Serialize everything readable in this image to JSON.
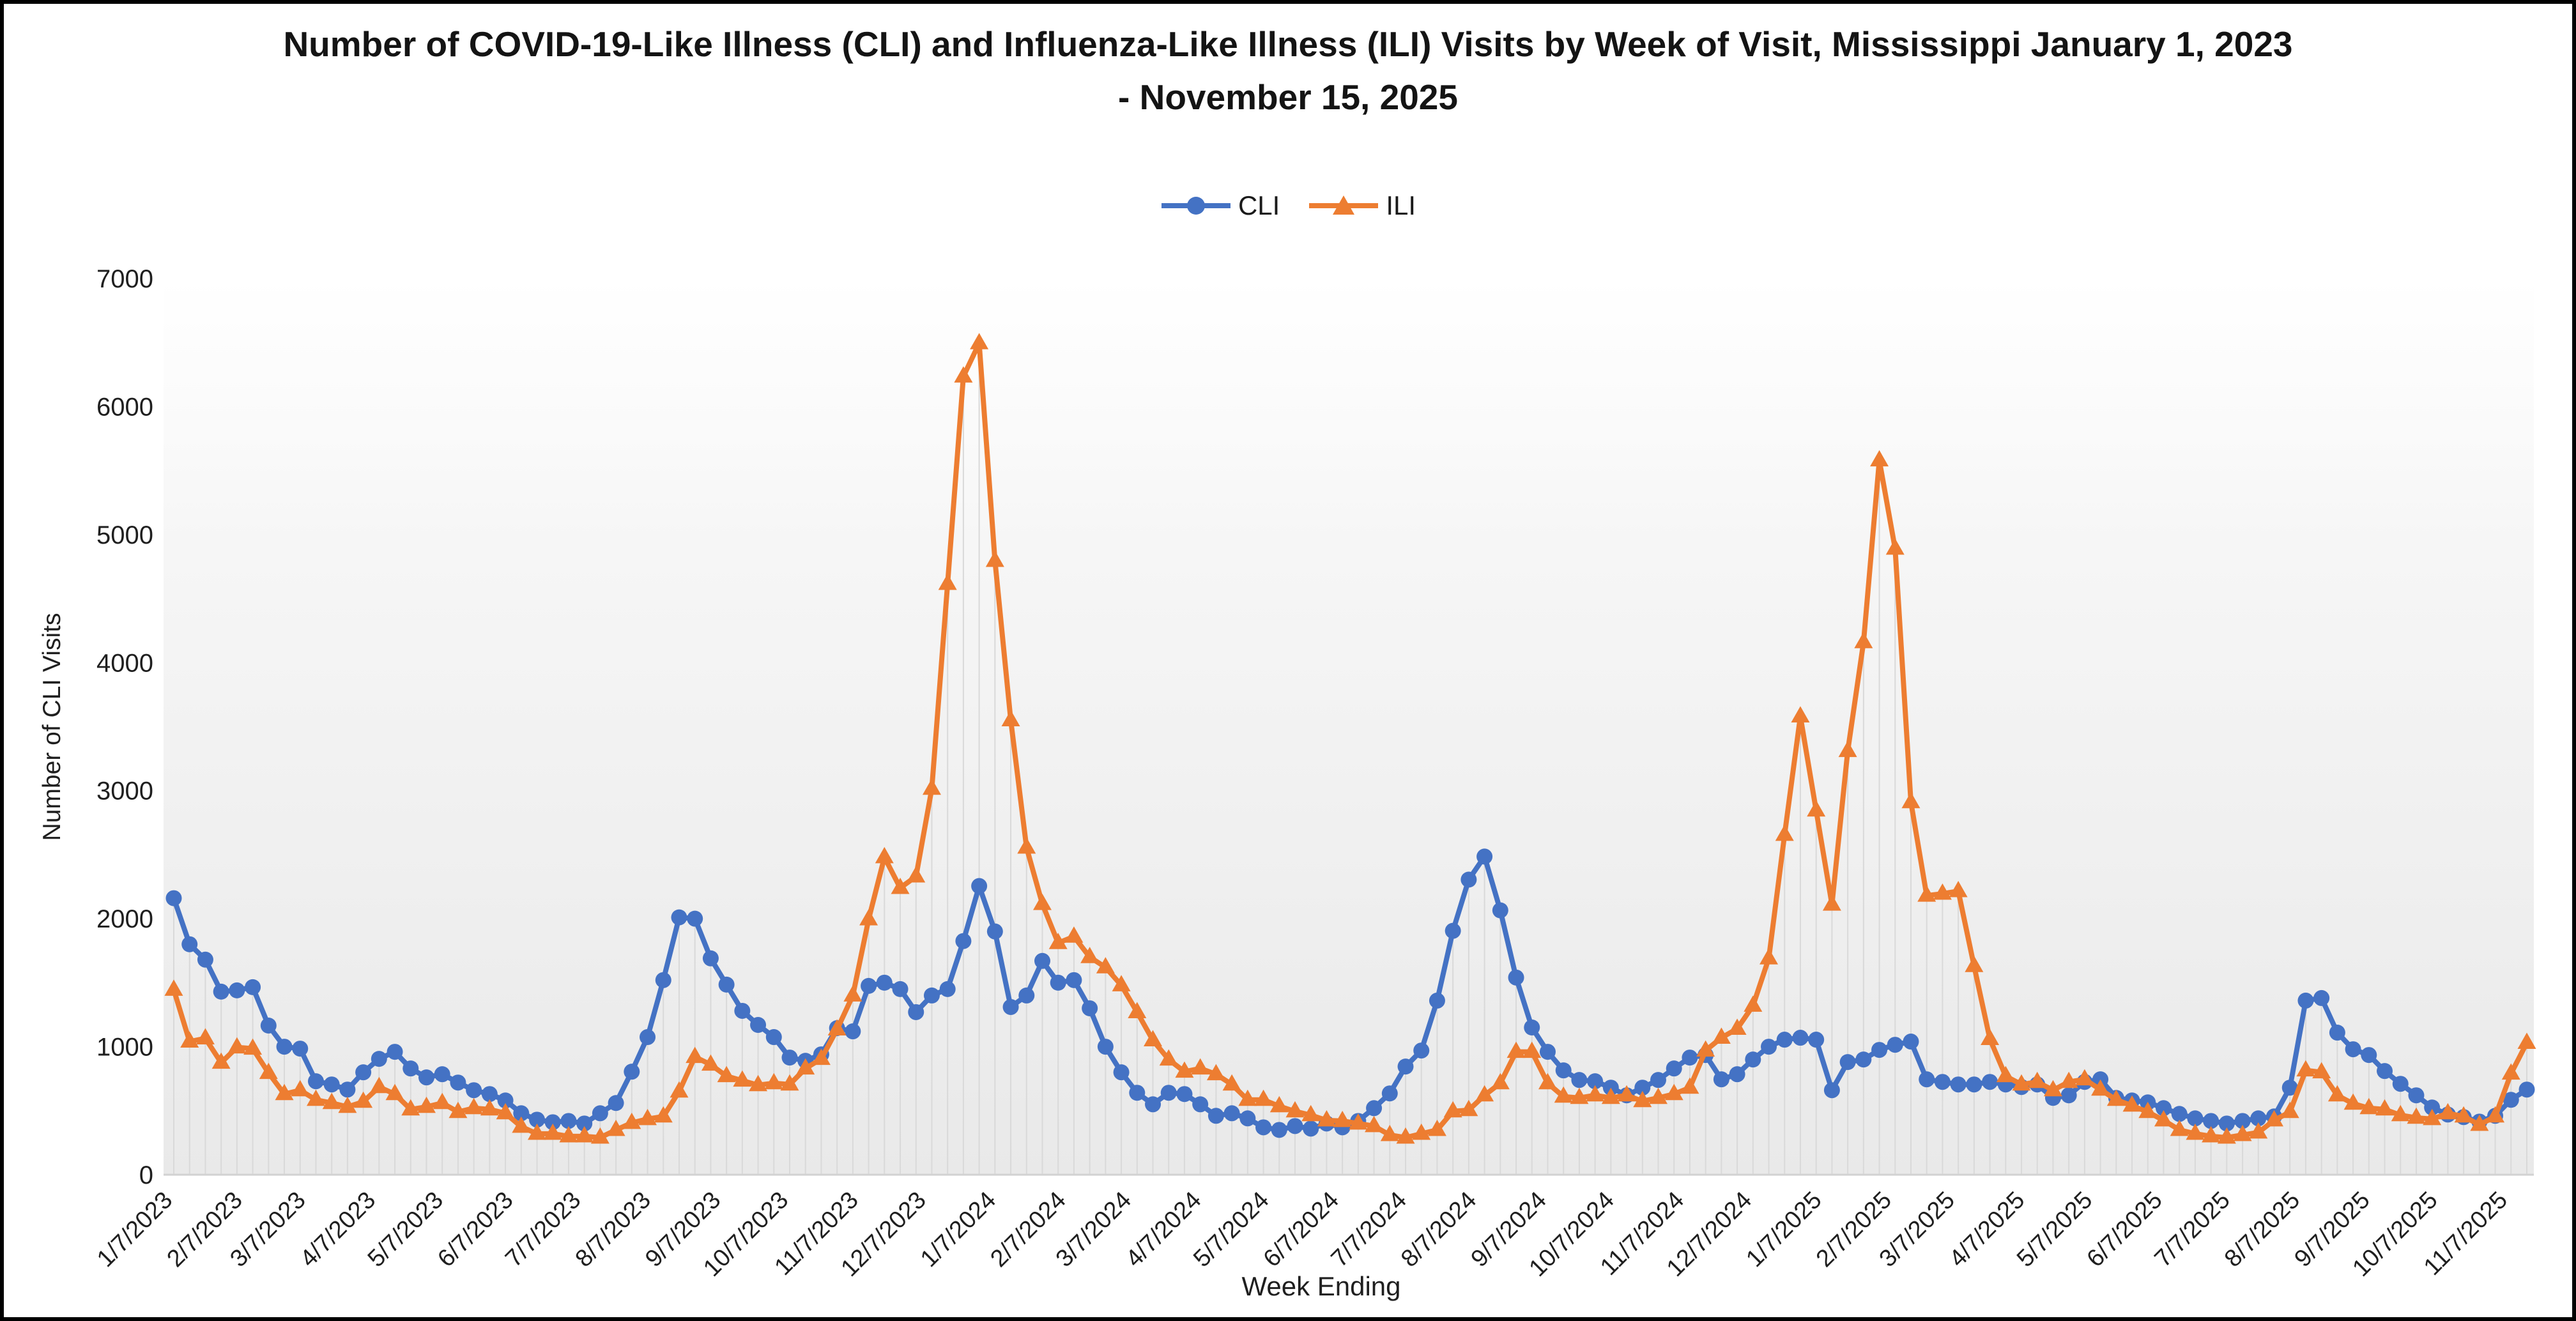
{
  "title": "Number of COVID-19-Like Illness (CLI) and Influenza-Like Illness (ILI) Visits by Week of Visit, Mississippi January 1, 2023 - November 15, 2025",
  "frame": {
    "border_color": "#000000",
    "background": "#ffffff"
  },
  "chart_data": {
    "type": "line",
    "title": "Number of COVID-19-Like Illness (CLI) and Influenza-Like Illness (ILI) Visits by Week of Visit, Mississippi January 1, 2023 - November 15, 2025",
    "xlabel": "Week Ending",
    "ylabel": "Number of CLI Visits",
    "ylim": [
      0,
      7000
    ],
    "grid": "vertical weekly drop lines",
    "legend_position": "top-center",
    "plot_bg_top": "#ffffff",
    "plot_bg_bottom": "#e9e9e9",
    "dropline_color": "#d9d9d9",
    "axis_line_color": "#d2d2d2",
    "y_tick_labels": [
      "0",
      "1000",
      "2000",
      "3000",
      "4000",
      "5000",
      "6000",
      "7000"
    ],
    "x_tick_labels": [
      "1/7/2023",
      "2/7/2023",
      "3/7/2023",
      "4/7/2023",
      "5/7/2023",
      "6/7/2023",
      "7/7/2023",
      "8/7/2023",
      "9/7/2023",
      "10/7/2023",
      "11/7/2023",
      "12/7/2023",
      "1/7/2024",
      "2/7/2024",
      "3/7/2024",
      "4/7/2024",
      "5/7/2024",
      "6/7/2024",
      "7/7/2024",
      "8/7/2024",
      "9/7/2024",
      "10/7/2024",
      "11/7/2024",
      "12/7/2024",
      "1/7/2025",
      "2/7/2025",
      "3/7/2025",
      "4/7/2025",
      "5/7/2025",
      "6/7/2025",
      "7/7/2025",
      "8/7/2025",
      "9/7/2025",
      "10/7/2025",
      "11/7/2025"
    ],
    "x": [
      "1/7/2023",
      "1/14/2023",
      "1/21/2023",
      "1/28/2023",
      "2/4/2023",
      "2/11/2023",
      "2/18/2023",
      "2/25/2023",
      "3/4/2023",
      "3/11/2023",
      "3/18/2023",
      "3/25/2023",
      "4/1/2023",
      "4/8/2023",
      "4/15/2023",
      "4/22/2023",
      "4/29/2023",
      "5/6/2023",
      "5/13/2023",
      "5/20/2023",
      "5/27/2023",
      "6/3/2023",
      "6/10/2023",
      "6/17/2023",
      "6/24/2023",
      "7/1/2023",
      "7/8/2023",
      "7/15/2023",
      "7/22/2023",
      "7/29/2023",
      "8/5/2023",
      "8/12/2023",
      "8/19/2023",
      "8/26/2023",
      "9/2/2023",
      "9/9/2023",
      "9/16/2023",
      "9/23/2023",
      "9/30/2023",
      "10/7/2023",
      "10/14/2023",
      "10/21/2023",
      "10/28/2023",
      "11/4/2023",
      "11/11/2023",
      "11/18/2023",
      "11/25/2023",
      "12/2/2023",
      "12/9/2023",
      "12/16/2023",
      "12/23/2023",
      "12/30/2023",
      "1/6/2024",
      "1/13/2024",
      "1/20/2024",
      "1/27/2024",
      "2/3/2024",
      "2/10/2024",
      "2/17/2024",
      "2/24/2024",
      "3/2/2024",
      "3/9/2024",
      "3/16/2024",
      "3/23/2024",
      "3/30/2024",
      "4/6/2024",
      "4/13/2024",
      "4/20/2024",
      "4/27/2024",
      "5/4/2024",
      "5/11/2024",
      "5/18/2024",
      "5/25/2024",
      "6/1/2024",
      "6/8/2024",
      "6/15/2024",
      "6/22/2024",
      "6/29/2024",
      "7/6/2024",
      "7/13/2024",
      "7/20/2024",
      "7/27/2024",
      "8/3/2024",
      "8/10/2024",
      "8/17/2024",
      "8/24/2024",
      "8/31/2024",
      "9/7/2024",
      "9/14/2024",
      "9/21/2024",
      "9/28/2024",
      "10/5/2024",
      "10/12/2024",
      "10/19/2024",
      "10/26/2024",
      "11/2/2024",
      "11/9/2024",
      "11/16/2024",
      "11/23/2024",
      "11/30/2024",
      "12/7/2024",
      "12/14/2024",
      "12/21/2024",
      "12/28/2024",
      "1/4/2025",
      "1/11/2025",
      "1/18/2025",
      "1/25/2025",
      "2/1/2025",
      "2/8/2025",
      "2/15/2025",
      "2/22/2025",
      "3/1/2025",
      "3/8/2025",
      "3/15/2025",
      "3/22/2025",
      "3/29/2025",
      "4/5/2025",
      "4/12/2025",
      "4/19/2025",
      "4/26/2025",
      "5/3/2025",
      "5/10/2025",
      "5/17/2025",
      "5/24/2025",
      "5/31/2025",
      "6/7/2025",
      "6/14/2025",
      "6/21/2025",
      "6/28/2025",
      "7/5/2025",
      "7/12/2025",
      "7/19/2025",
      "7/26/2025",
      "8/2/2025",
      "8/9/2025",
      "8/16/2025",
      "8/23/2025",
      "8/30/2025",
      "9/6/2025",
      "9/13/2025",
      "9/20/2025",
      "9/27/2025",
      "10/4/2025",
      "10/11/2025",
      "10/18/2025",
      "10/25/2025",
      "11/1/2025",
      "11/8/2025",
      "11/15/2025"
    ],
    "series": [
      {
        "name": "CLI",
        "color": "#4472C4",
        "marker": "circle",
        "values": [
          2160,
          1800,
          1680,
          1430,
          1440,
          1465,
          1165,
          1000,
          985,
          730,
          705,
          665,
          800,
          905,
          960,
          830,
          760,
          785,
          720,
          660,
          630,
          580,
          480,
          430,
          410,
          420,
          400,
          480,
          560,
          805,
          1075,
          1520,
          2010,
          2000,
          1690,
          1485,
          1280,
          1170,
          1075,
          915,
          890,
          940,
          1145,
          1120,
          1475,
          1500,
          1450,
          1270,
          1400,
          1450,
          1825,
          2255,
          1900,
          1310,
          1400,
          1670,
          1500,
          1520,
          1300,
          1000,
          800,
          640,
          550,
          640,
          630,
          550,
          460,
          480,
          440,
          370,
          350,
          380,
          360,
          400,
          370,
          420,
          520,
          635,
          845,
          970,
          1360,
          1905,
          2305,
          2485,
          2065,
          1540,
          1150,
          960,
          815,
          740,
          730,
          680,
          620,
          680,
          740,
          830,
          915,
          935,
          745,
          785,
          900,
          1000,
          1055,
          1070,
          1055,
          660,
          880,
          900,
          975,
          1015,
          1040,
          745,
          725,
          705,
          705,
          725,
          705,
          685,
          705,
          600,
          620,
          725,
          745,
          600,
          580,
          565,
          520,
          475,
          440,
          420,
          400,
          420,
          440,
          455,
          680,
          1360,
          1380,
          1110,
          980,
          935,
          810,
          710,
          620,
          525,
          470,
          450,
          415,
          460,
          585,
          665
        ]
      },
      {
        "name": "ILI",
        "color": "#ED7D31",
        "marker": "triangle",
        "values": [
          1445,
          1040,
          1065,
          875,
          995,
          985,
          795,
          630,
          660,
          585,
          560,
          530,
          570,
          685,
          630,
          510,
          530,
          560,
          490,
          520,
          510,
          480,
          375,
          320,
          320,
          300,
          300,
          290,
          350,
          405,
          435,
          455,
          650,
          920,
          860,
          770,
          735,
          700,
          715,
          705,
          830,
          905,
          1135,
          1400,
          1995,
          2480,
          2240,
          2330,
          3015,
          4615,
          6235,
          6495,
          4795,
          3550,
          2555,
          2115,
          1810,
          1860,
          1700,
          1620,
          1480,
          1270,
          1050,
          900,
          805,
          830,
          785,
          705,
          585,
          585,
          535,
          495,
          465,
          425,
          420,
          400,
          380,
          310,
          290,
          320,
          350,
          495,
          505,
          620,
          715,
          960,
          960,
          715,
          610,
          600,
          620,
          600,
          620,
          575,
          600,
          630,
          680,
          970,
          1070,
          1140,
          1320,
          1690,
          2655,
          3580,
          2845,
          2110,
          3310,
          4160,
          5580,
          4890,
          2910,
          2180,
          2195,
          2215,
          1630,
          1060,
          770,
          705,
          725,
          660,
          725,
          745,
          665,
          585,
          540,
          490,
          425,
          350,
          320,
          300,
          290,
          310,
          330,
          425,
          490,
          815,
          800,
          620,
          555,
          520,
          510,
          465,
          445,
          435,
          480,
          455,
          390,
          455,
          790,
          1030
        ]
      }
    ]
  }
}
